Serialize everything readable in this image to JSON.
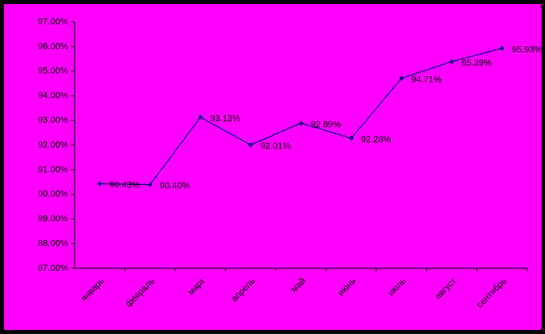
{
  "chart_data": {
    "type": "line",
    "categories": [
      "январь",
      "февраль",
      "март",
      "апрель",
      "май",
      "июнь",
      "июль",
      "август",
      "сентябрь"
    ],
    "values": [
      90.43,
      90.4,
      93.13,
      92.01,
      92.89,
      92.28,
      94.71,
      95.39,
      95.93
    ],
    "value_labels": [
      "90.43%",
      "90.40%",
      "93.13%",
      "92.01%",
      "92.89%",
      "92.28%",
      "94.71%",
      "95.39%",
      "95.93%"
    ],
    "color": "#000080",
    "background": "#ff00ff",
    "ylim": [
      87,
      97
    ],
    "yticks": [
      {
        "value": 87,
        "label": "87.00%"
      },
      {
        "value": 88,
        "label": "88.00%"
      },
      {
        "value": 89,
        "label": "89.00%"
      },
      {
        "value": 90,
        "label": "90.00%"
      },
      {
        "value": 91,
        "label": "91.00%"
      },
      {
        "value": 92,
        "label": "92.00%"
      },
      {
        "value": 93,
        "label": "93.00%"
      },
      {
        "value": 94,
        "label": "94.00%"
      },
      {
        "value": 95,
        "label": "95.00%"
      },
      {
        "value": 96,
        "label": "96.00%"
      },
      {
        "value": 97,
        "label": "97.00%"
      }
    ],
    "grid": false
  }
}
